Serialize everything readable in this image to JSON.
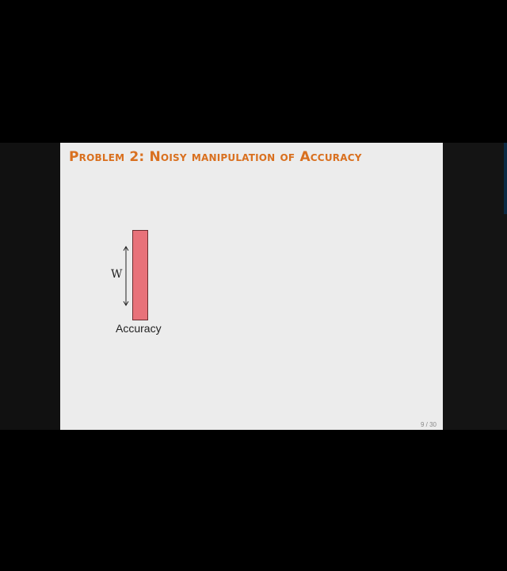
{
  "slide": {
    "title": "Problem 2: Noisy manipulation of Accuracy",
    "figure": {
      "dimension_label": "W",
      "bar_label": "Accuracy",
      "bar_color": "#e8727a"
    },
    "page_number": "9 / 30"
  },
  "colors": {
    "title": "#d9701f",
    "background": "#ececec"
  }
}
